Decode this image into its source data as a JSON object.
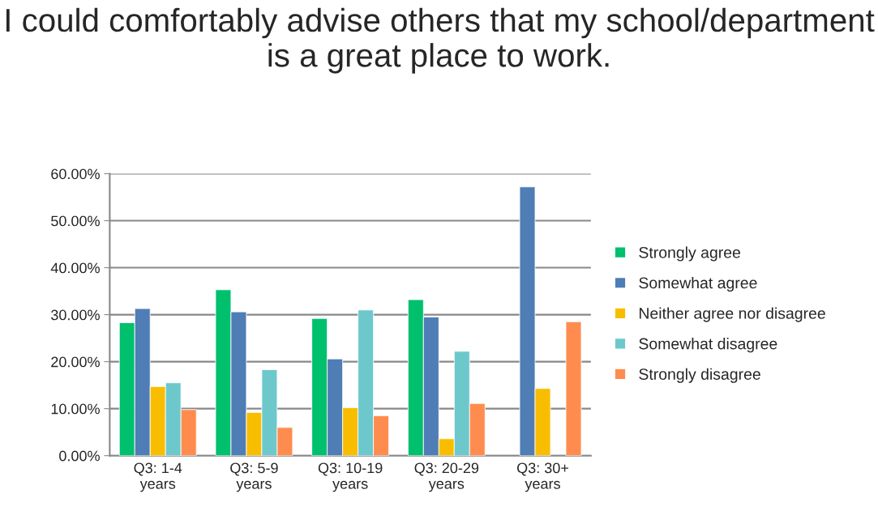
{
  "chart_data": {
    "type": "bar",
    "title": "I could comfortably advise others that my school/department is a great place to work.",
    "categories": [
      "Q3: 1-4\nyears",
      "Q3: 5-9\nyears",
      "Q3: 10-19\nyears",
      "Q3: 20-29\nyears",
      "Q3: 30+\nyears"
    ],
    "series": [
      {
        "name": "Strongly agree",
        "color": "#00c06e",
        "values": [
          28.3,
          35.3,
          29.2,
          33.2,
          null
        ]
      },
      {
        "name": "Somewhat agree",
        "color": "#4f7db5",
        "values": [
          31.3,
          30.6,
          20.6,
          29.5,
          57.2
        ]
      },
      {
        "name": "Neither agree nor disagree",
        "color": "#f9bd00",
        "values": [
          14.7,
          9.2,
          10.2,
          3.6,
          14.3
        ]
      },
      {
        "name": "Somewhat disagree",
        "color": "#6dc8cc",
        "values": [
          15.5,
          18.3,
          31.0,
          22.2,
          null
        ]
      },
      {
        "name": "Strongly disagree",
        "color": "#ff8c4f",
        "values": [
          9.8,
          6.0,
          8.5,
          11.1,
          28.5
        ]
      }
    ],
    "ylim": [
      0,
      60
    ],
    "yticks": [
      {
        "value": 0,
        "label": "0.00%"
      },
      {
        "value": 10,
        "label": "10.00%"
      },
      {
        "value": 20,
        "label": "20.00%"
      },
      {
        "value": 30,
        "label": "30.00%"
      },
      {
        "value": 40,
        "label": "40.00%"
      },
      {
        "value": 50,
        "label": "50.00%"
      },
      {
        "value": 60,
        "label": "60.00%"
      }
    ],
    "grid": "y",
    "legend": "right"
  }
}
